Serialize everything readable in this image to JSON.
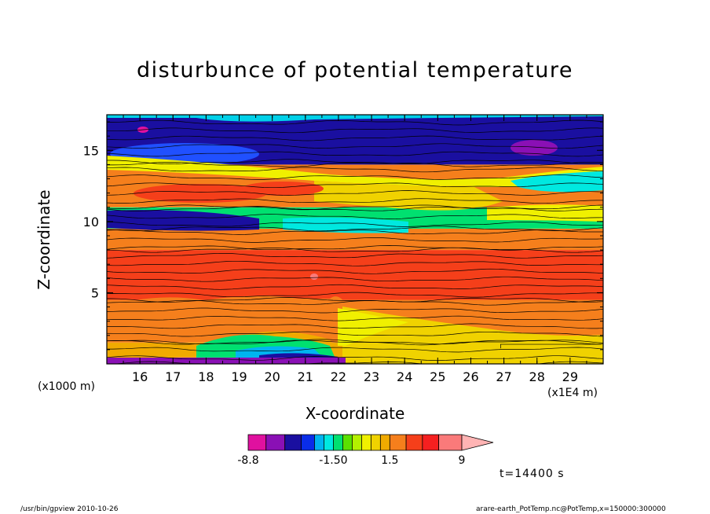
{
  "chart_data": {
    "type": "heatmap",
    "title": "disturbunce of potential temperature",
    "xlabel": "X-coordinate",
    "ylabel": "Z-coordinate",
    "x_unit_label": "(x1E4 m)",
    "y_unit_label": "(x1000 m)",
    "x_ticks": [
      16,
      17,
      18,
      19,
      20,
      21,
      22,
      23,
      24,
      25,
      26,
      27,
      28,
      29
    ],
    "y_ticks": [
      5,
      10,
      15
    ],
    "xlim": [
      15,
      30
    ],
    "ylim": [
      0,
      17.5
    ],
    "colorbar": {
      "tick_labels": [
        "-8.8",
        "-1.50",
        "1.5",
        "9"
      ],
      "bins": [
        -8.8,
        -7.0,
        -5.0,
        -3.5,
        -2.5,
        -2.0,
        -1.5,
        -1.0,
        -0.5,
        0.0,
        0.5,
        1.0,
        1.5,
        3.0,
        4.5,
        6.0,
        9.0
      ],
      "colors": [
        "#e0119f",
        "#8a10b5",
        "#1a0fa0",
        "#0a2de8",
        "#00b4f0",
        "#00e8e0",
        "#00e070",
        "#5ae000",
        "#b4f000",
        "#f0f000",
        "#f0d200",
        "#f0aa00",
        "#f57f1c",
        "#f53f1a",
        "#f52020",
        "#fa7a7a",
        "#ffb4b4"
      ]
    },
    "regions": [
      {
        "range": [
          0,
          0.4
        ],
        "value": -7.5,
        "color": "#8a10b5"
      },
      {
        "range": [
          0.4,
          1.5
        ],
        "value": 1.5,
        "color": "#f0aa00"
      },
      {
        "range": [
          1.5,
          4.5
        ],
        "value": 2.5,
        "color": "#f57f1c"
      },
      {
        "range": [
          4.5,
          8.0
        ],
        "value": 4.5,
        "color": "#f53f1a"
      },
      {
        "range": [
          8.0,
          9.5
        ],
        "value": 3.0,
        "color": "#f57f1c"
      },
      {
        "range": [
          9.5,
          11.0
        ],
        "value": -0.5,
        "color": "#00e070"
      },
      {
        "range": [
          11.0,
          14.0
        ],
        "value": 3.0,
        "color": "#f57f1c"
      },
      {
        "range": [
          14.0,
          17.5
        ],
        "value": -3.5,
        "color": "#1a0fa0"
      }
    ],
    "time_label": "t=14400  s"
  },
  "footer": {
    "left": "/usr/bin/gpview   2010-10-26",
    "right": "arare-earth_PotTemp.nc@PotTemp,x=150000:300000"
  }
}
